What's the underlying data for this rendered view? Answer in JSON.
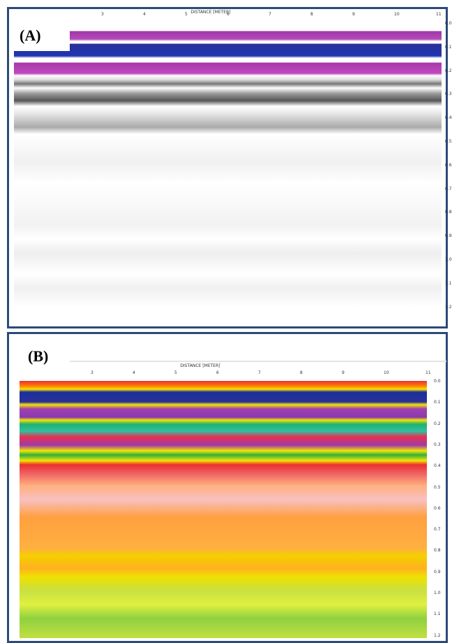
{
  "panels": [
    {
      "label": "(A)",
      "x_axis_title": "DISTANCE [METER]",
      "x_ticks": [
        "3",
        "4",
        "5",
        "6",
        "7",
        "8",
        "9",
        "10",
        "11"
      ],
      "y_ticks": [
        "0.0",
        "0.1",
        "0.2",
        "0.3",
        "0.4",
        "0.5",
        "0.6",
        "0.7",
        "0.8",
        "0.9",
        "1.0",
        "1.1",
        "1.2"
      ]
    },
    {
      "label": "(B)",
      "x_axis_title": "DISTANCE [METER]",
      "x_ticks": [
        "3",
        "4",
        "5",
        "6",
        "7",
        "8",
        "9",
        "10",
        "11"
      ],
      "y_ticks": [
        "0.0",
        "0.1",
        "0.2",
        "0.3",
        "0.4",
        "0.5",
        "0.6",
        "0.7",
        "0.8",
        "0.9",
        "1.0",
        "1.1",
        "1.2"
      ]
    }
  ]
}
